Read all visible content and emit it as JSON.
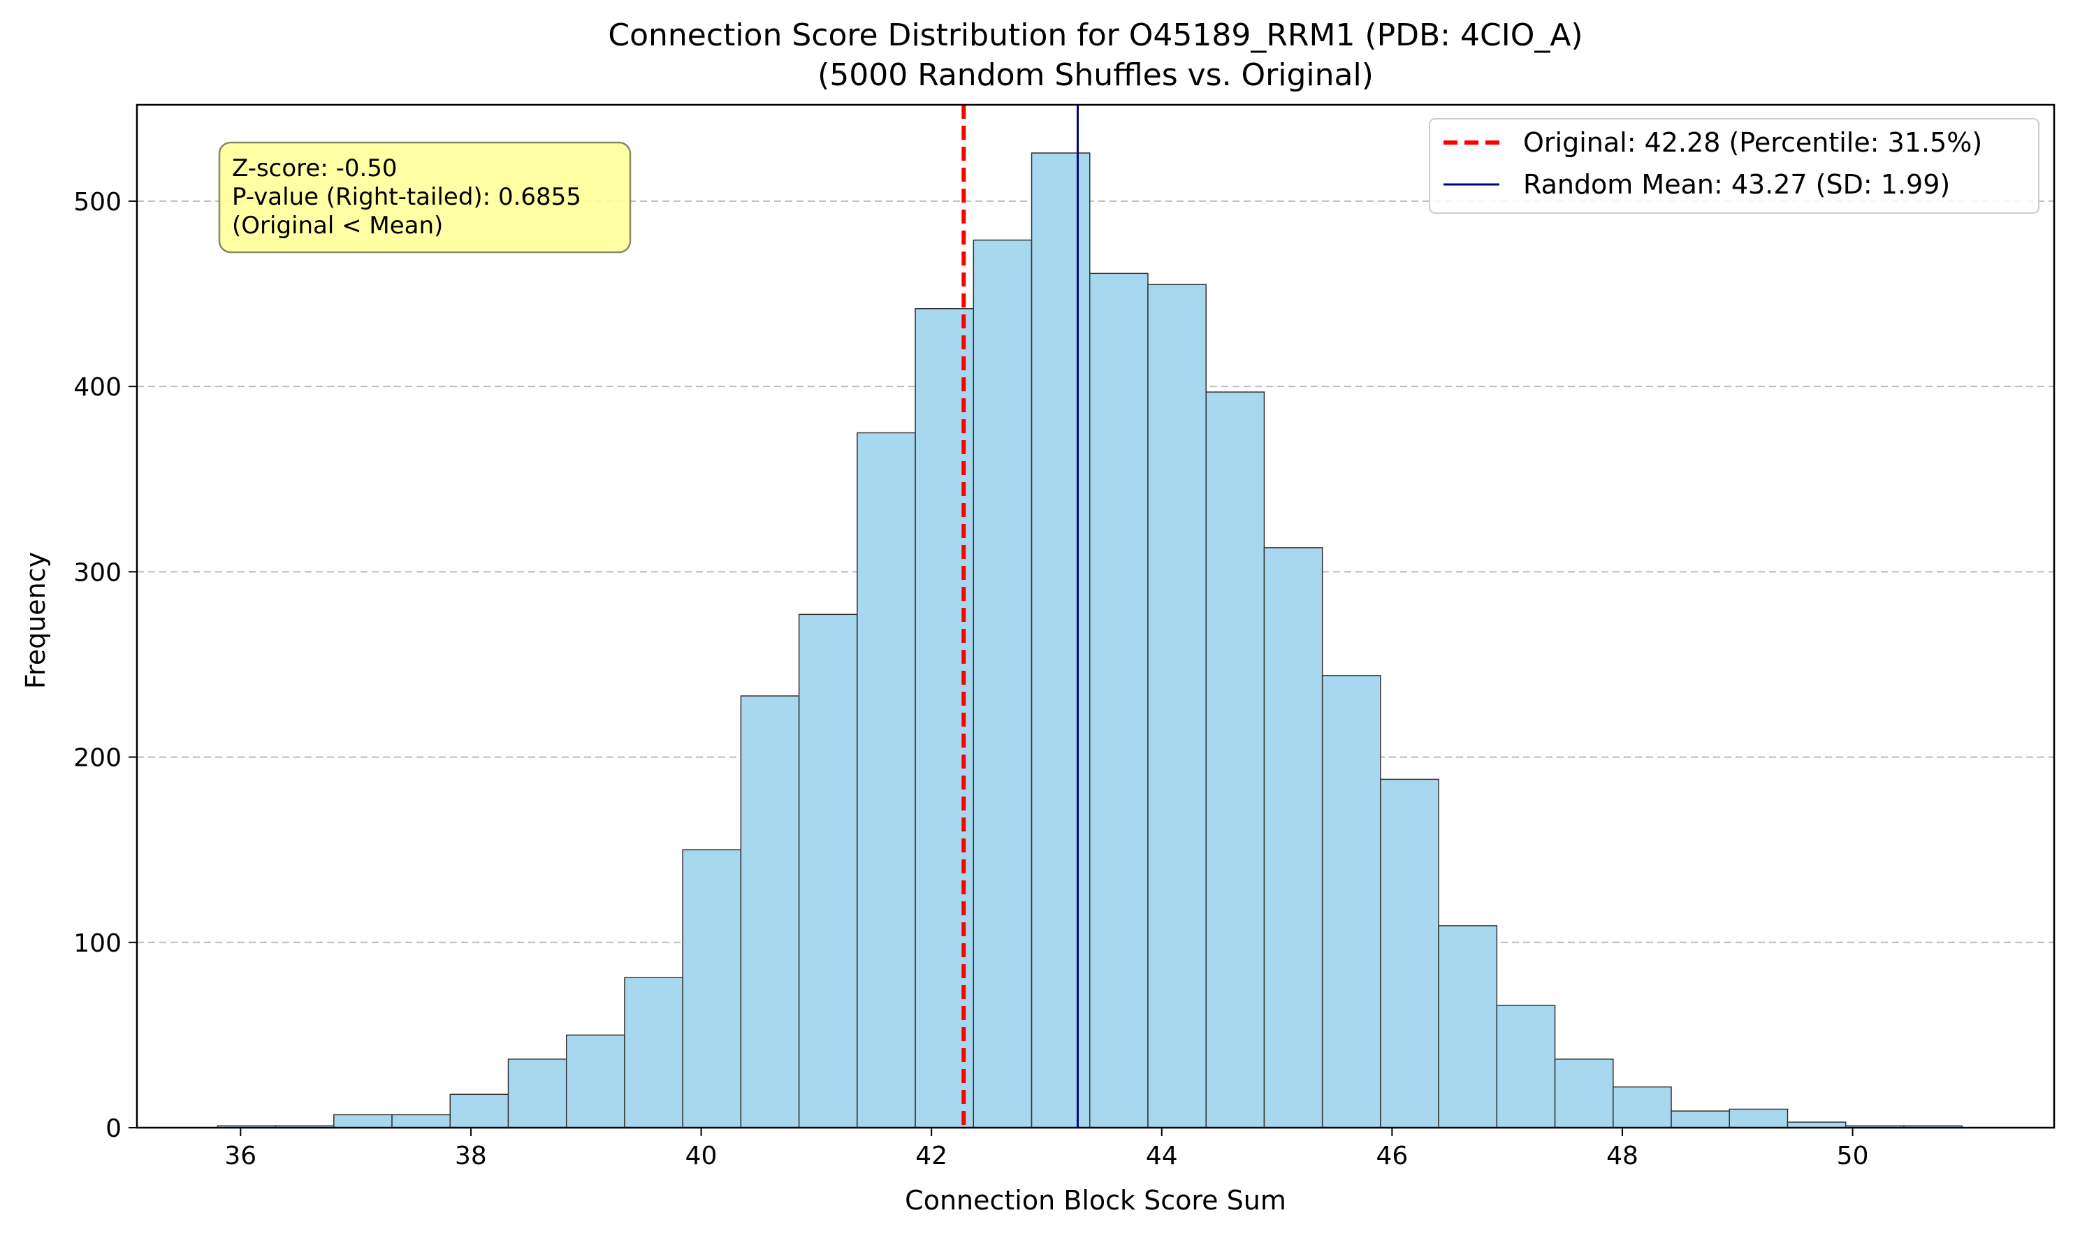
{
  "chart_data": {
    "type": "bar",
    "title": "Connection Score Distribution for O45189_RRM1 (PDB: 4CIO_A)",
    "subtitle": "(5000 Random Shuffles vs. Original)",
    "xlabel": "Connection Block Score Sum",
    "ylabel": "Frequency",
    "xlim": [
      35.1,
      51.75
    ],
    "ylim": [
      0,
      552
    ],
    "xticks": [
      36,
      38,
      40,
      42,
      44,
      46,
      48,
      50
    ],
    "yticks": [
      0,
      100,
      200,
      300,
      400,
      500
    ],
    "grid": "y-dashed",
    "bin_start": 35.8,
    "bin_width": 0.505,
    "values": [
      1,
      1,
      7,
      7,
      18,
      37,
      50,
      81,
      150,
      233,
      277,
      375,
      442,
      479,
      526,
      461,
      455,
      397,
      313,
      244,
      188,
      109,
      66,
      37,
      22,
      9,
      10,
      3,
      1,
      1
    ],
    "bar_color": "#a8d8f0",
    "edge_color": "#333333",
    "original_value": 42.28,
    "mean_value": 43.27,
    "original_color": "#ff0000",
    "mean_color": "#00007f",
    "legend": {
      "position": "top-right",
      "original_label": "Original: 42.28 (Percentile: 31.5%)",
      "mean_label": "Random Mean: 43.27 (SD: 1.99)"
    },
    "annotation": {
      "lines": [
        "Z-score: -0.50",
        "P-value (Right-tailed): 0.6855",
        "(Original < Mean)"
      ],
      "background": "#ffff99"
    }
  }
}
